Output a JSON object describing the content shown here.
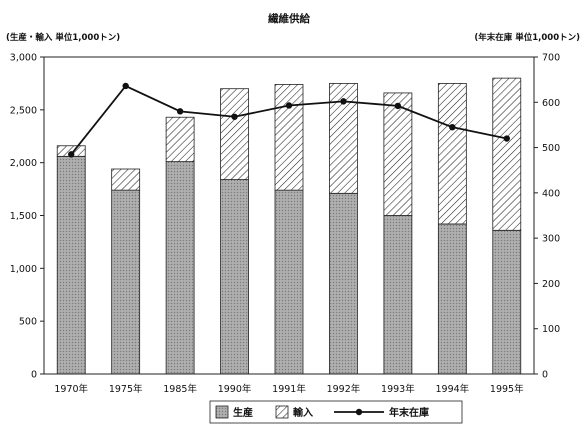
{
  "chart_data": {
    "type": "bar",
    "title": "繊維供給",
    "left_axis_label": "(生産・輸入 単位1,000トン)",
    "right_axis_label": "(年末在庫 単位1,000トン)",
    "categories": [
      "1970年",
      "1975年",
      "1985年",
      "1990年",
      "1991年",
      "1992年",
      "1993年",
      "1994年",
      "1995年"
    ],
    "series": [
      {
        "name": "生産",
        "kind": "bar",
        "axis": "left",
        "stacked": true,
        "pattern": "solid-gray",
        "values": [
          2060,
          1740,
          2010,
          1840,
          1740,
          1710,
          1500,
          1420,
          1360
        ]
      },
      {
        "name": "輸入",
        "kind": "bar",
        "axis": "left",
        "stacked": true,
        "pattern": "diagonal-hatch",
        "values": [
          100,
          200,
          420,
          860,
          1000,
          1040,
          1160,
          1330,
          1440
        ]
      },
      {
        "name": "年末在庫",
        "kind": "line",
        "axis": "right",
        "marker": "dot",
        "values": [
          485,
          636,
          580,
          568,
          593,
          602,
          592,
          545,
          520
        ]
      }
    ],
    "y_left": {
      "min": 0,
      "max": 3000,
      "ticks": [
        "0",
        "500",
        "1,000",
        "1,500",
        "2,000",
        "2,500",
        "3,000"
      ]
    },
    "y_right": {
      "min": 0,
      "max": 700,
      "ticks": [
        "0",
        "100",
        "200",
        "300",
        "400",
        "500",
        "600",
        "700"
      ]
    },
    "legend_position": "bottom",
    "grid": false
  }
}
